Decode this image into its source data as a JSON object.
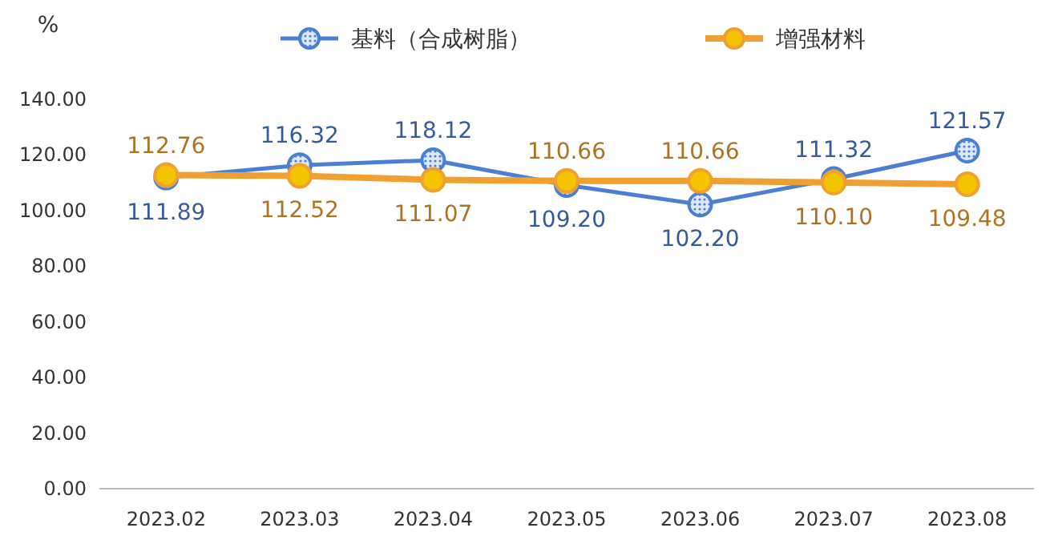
{
  "chart_data": {
    "type": "line",
    "ylabel": "%",
    "categories": [
      "2023.02",
      "2023.03",
      "2023.04",
      "2023.05",
      "2023.06",
      "2023.07",
      "2023.08"
    ],
    "series": [
      {
        "name": "基料（合成树脂）",
        "color": "#4a7fd4",
        "values": [
          111.89,
          116.32,
          118.12,
          109.2,
          102.2,
          111.32,
          121.57
        ],
        "value_labels": [
          "111.89",
          "116.32",
          "118.12",
          "109.20",
          "102.20",
          "111.32",
          "121.57"
        ]
      },
      {
        "name": "增强材料",
        "color": "#f0a030",
        "values": [
          112.76,
          112.52,
          111.07,
          110.66,
          110.66,
          110.1,
          109.48
        ],
        "value_labels": [
          "112.76",
          "112.52",
          "111.07",
          "110.66",
          "110.66",
          "110.10",
          "109.48"
        ]
      }
    ],
    "ylim": [
      0,
      140
    ],
    "yticks": [
      {
        "value": 0,
        "label": "0.00"
      },
      {
        "value": 20,
        "label": "20.00"
      },
      {
        "value": 40,
        "label": "40.00"
      },
      {
        "value": 60,
        "label": "60.00"
      },
      {
        "value": 80,
        "label": "80.00"
      },
      {
        "value": 100,
        "label": "100.00"
      },
      {
        "value": 120,
        "label": "120.00"
      },
      {
        "value": 140,
        "label": "140.00"
      }
    ],
    "legend": "top",
    "marker": "circle",
    "line_style": "solid",
    "grid": false
  }
}
